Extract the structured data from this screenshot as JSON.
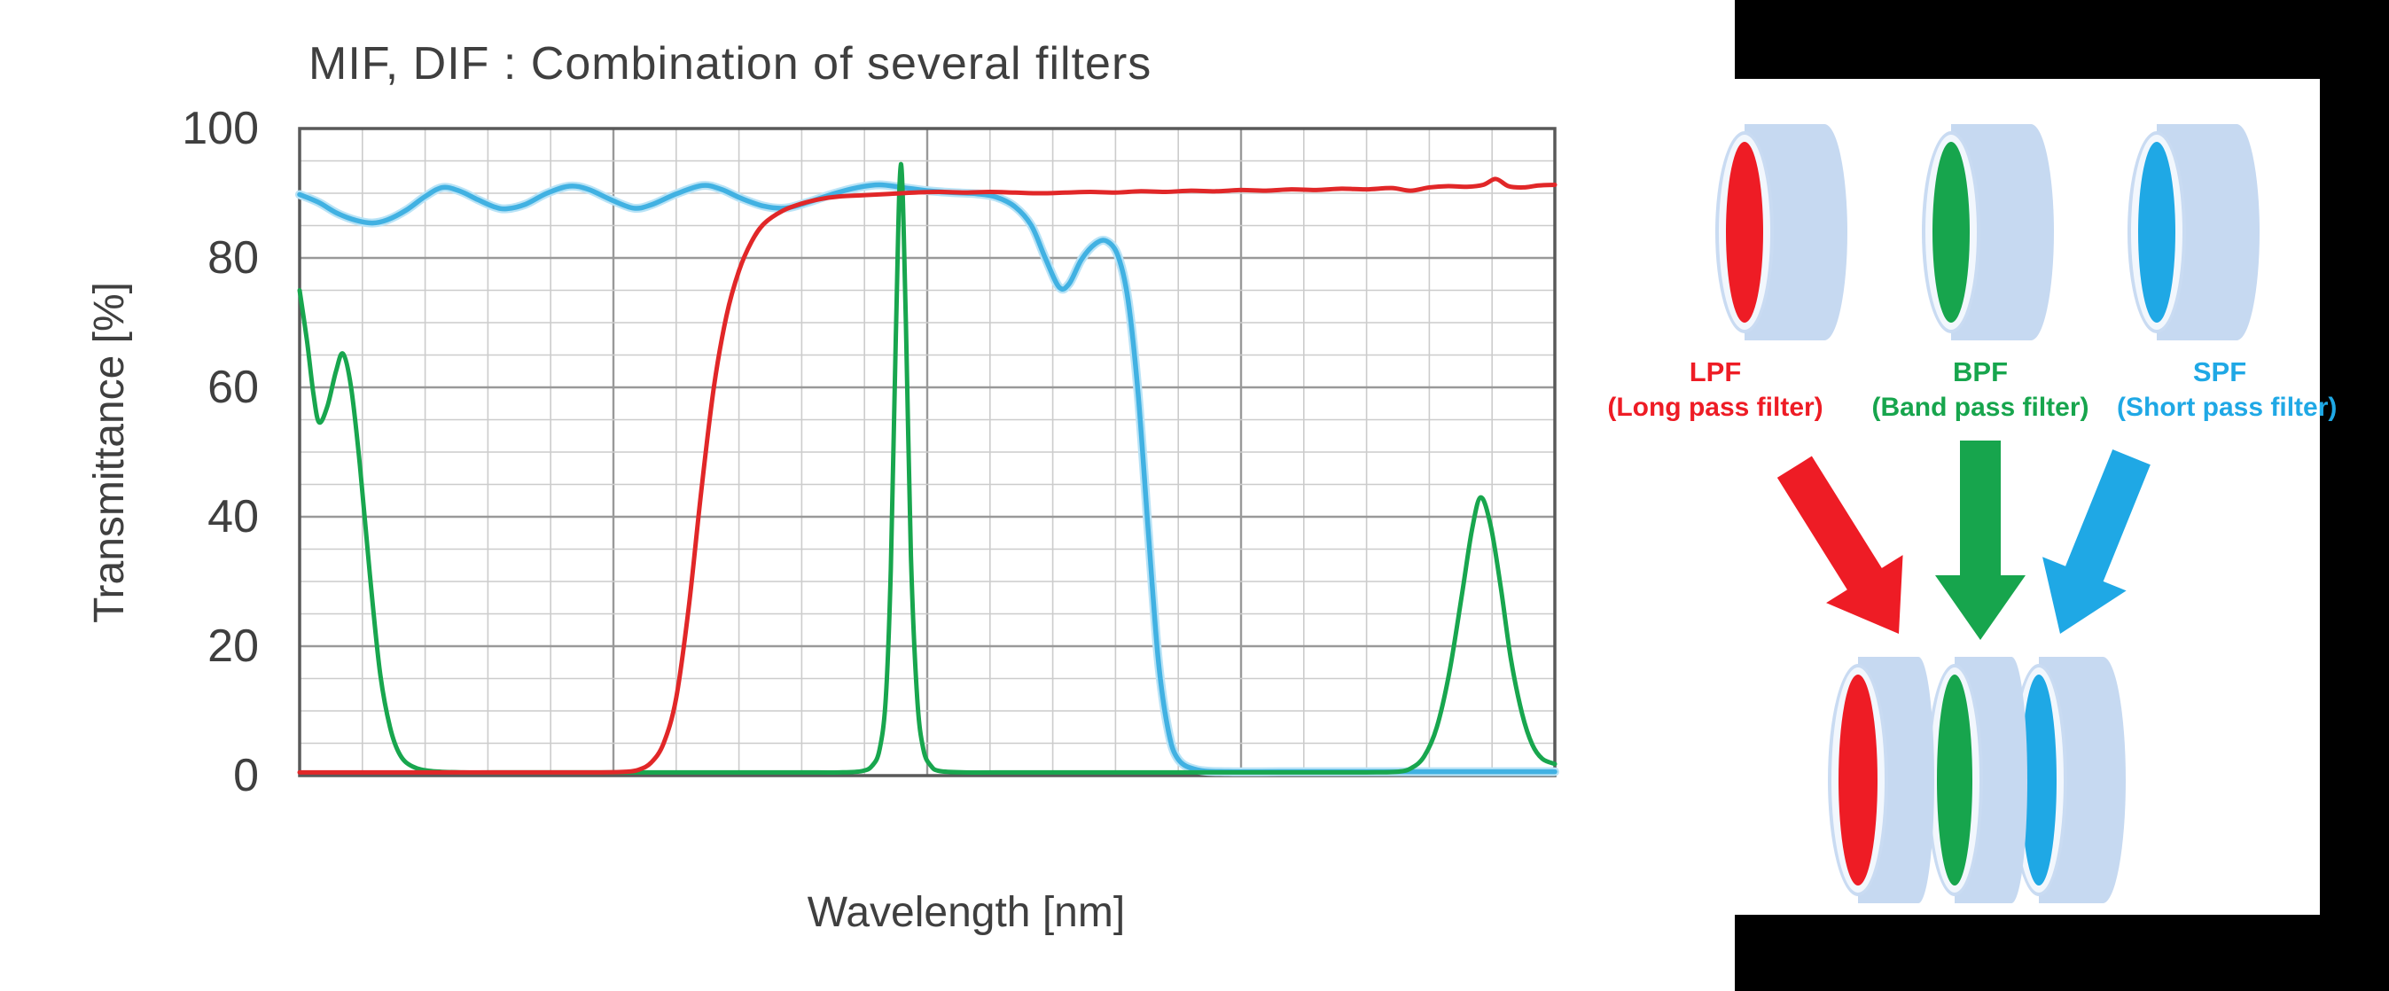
{
  "colors": {
    "lpf_red": "#ee1c25",
    "bpf_green": "#17a54d",
    "spf_cyan": "#1fa8e5",
    "curve_red": "#e12728",
    "curve_green": "#18a64e",
    "curve_cyan": "#41b1e2",
    "curve_cyan_halo": "#b9e3f6",
    "cylinder_body": "#c6d9f1",
    "frame_black": "#000000",
    "text_gray": "#3f3f3f"
  },
  "chart_data": {
    "type": "line",
    "title": "MIF, DIF : Combination of several filters",
    "xlabel": "Wavelength [nm]",
    "ylabel": "Transmittance [%]",
    "x_axis": {
      "tick_labels_visible": false,
      "minor_divisions": 20,
      "major_every_divisions": 5,
      "note": "x values below are percent of plotted wavelength range (no numeric labels shown)"
    },
    "y_axis": {
      "min": 0,
      "max": 100,
      "tick_labels": [
        "100",
        "80",
        "60",
        "40",
        "20",
        "0"
      ],
      "minor_step": 5,
      "major_step": 20
    },
    "grid": "on",
    "legend": "none",
    "series": [
      {
        "name": "SPF (Short pass filter)",
        "color_key": "spf_cyan",
        "points": [
          [
            0,
            89.8
          ],
          [
            1.5,
            88.6
          ],
          [
            3,
            86.9
          ],
          [
            4.5,
            85.8
          ],
          [
            5.8,
            85.4
          ],
          [
            7,
            85.9
          ],
          [
            8.5,
            87.4
          ],
          [
            10,
            89.5
          ],
          [
            11.4,
            90.9
          ],
          [
            12.8,
            90.3
          ],
          [
            14.2,
            89.0
          ],
          [
            15.5,
            87.9
          ],
          [
            16.5,
            87.6
          ],
          [
            18,
            88.3
          ],
          [
            19.7,
            90.0
          ],
          [
            21.5,
            91.1
          ],
          [
            23,
            90.6
          ],
          [
            24.8,
            89.0
          ],
          [
            26.6,
            87.7
          ],
          [
            28,
            88.2
          ],
          [
            30,
            89.9
          ],
          [
            32.1,
            91.2
          ],
          [
            33.6,
            90.6
          ],
          [
            35.2,
            89.2
          ],
          [
            37,
            88.0
          ],
          [
            38.7,
            87.7
          ],
          [
            40.5,
            88.6
          ],
          [
            42.5,
            89.9
          ],
          [
            44.5,
            90.9
          ],
          [
            46.2,
            91.3
          ],
          [
            48,
            90.9
          ],
          [
            50,
            90.4
          ],
          [
            52,
            90.1
          ],
          [
            54,
            89.9
          ],
          [
            55.5,
            89.4
          ],
          [
            57,
            87.9
          ],
          [
            58.3,
            85.0
          ],
          [
            59.4,
            80.0
          ],
          [
            60.5,
            75.5
          ],
          [
            61.3,
            76.0
          ],
          [
            62.3,
            79.8
          ],
          [
            63.4,
            82.2
          ],
          [
            64.3,
            82.6
          ],
          [
            65.2,
            80.3
          ],
          [
            66,
            73.5
          ],
          [
            66.8,
            59.0
          ],
          [
            67.6,
            38.0
          ],
          [
            68.4,
            18.0
          ],
          [
            69.2,
            7.0
          ],
          [
            70,
            2.5
          ],
          [
            71.5,
            0.9
          ],
          [
            74,
            0.6
          ],
          [
            78,
            0.6
          ],
          [
            82,
            0.6
          ],
          [
            86,
            0.6
          ],
          [
            90,
            0.6
          ],
          [
            95,
            0.6
          ],
          [
            100,
            0.6
          ]
        ]
      },
      {
        "name": "BPF (Band pass filter)",
        "color_key": "bpf_green",
        "points": [
          [
            0,
            75
          ],
          [
            0.6,
            67
          ],
          [
            1.1,
            59
          ],
          [
            1.55,
            54.6
          ],
          [
            2.2,
            57
          ],
          [
            2.9,
            62.5
          ],
          [
            3.46,
            65.2
          ],
          [
            4.1,
            60
          ],
          [
            4.8,
            48
          ],
          [
            5.6,
            31
          ],
          [
            6.4,
            16
          ],
          [
            7.2,
            7.5
          ],
          [
            8,
            3.2
          ],
          [
            9,
            1.4
          ],
          [
            10.5,
            0.7
          ],
          [
            13,
            0.5
          ],
          [
            17,
            0.5
          ],
          [
            21,
            0.5
          ],
          [
            25,
            0.5
          ],
          [
            30,
            0.5
          ],
          [
            35,
            0.5
          ],
          [
            40,
            0.5
          ],
          [
            43,
            0.5
          ],
          [
            44.8,
            0.7
          ],
          [
            45.6,
            1.5
          ],
          [
            46.2,
            4
          ],
          [
            46.7,
            12
          ],
          [
            47.1,
            32
          ],
          [
            47.5,
            68
          ],
          [
            47.9,
            94.5
          ],
          [
            48.3,
            70
          ],
          [
            48.7,
            34
          ],
          [
            49.2,
            12
          ],
          [
            49.7,
            4
          ],
          [
            50.3,
            1.5
          ],
          [
            51,
            0.7
          ],
          [
            53,
            0.5
          ],
          [
            57,
            0.5
          ],
          [
            62,
            0.5
          ],
          [
            68,
            0.5
          ],
          [
            74,
            0.5
          ],
          [
            80,
            0.5
          ],
          [
            85,
            0.5
          ],
          [
            87.5,
            0.6
          ],
          [
            88.6,
            1.2
          ],
          [
            89.6,
            3
          ],
          [
            90.6,
            7.5
          ],
          [
            91.6,
            16
          ],
          [
            92.6,
            28
          ],
          [
            93.4,
            38
          ],
          [
            94.1,
            43
          ],
          [
            94.9,
            38.5
          ],
          [
            95.7,
            29
          ],
          [
            96.5,
            18
          ],
          [
            97.4,
            9.5
          ],
          [
            98.2,
            4.8
          ],
          [
            99,
            2.6
          ],
          [
            100,
            1.8
          ]
        ]
      },
      {
        "name": "LPF (Long pass filter)",
        "color_key": "lpf_red",
        "points": [
          [
            0,
            0.5
          ],
          [
            5,
            0.5
          ],
          [
            10,
            0.5
          ],
          [
            15,
            0.5
          ],
          [
            20,
            0.5
          ],
          [
            24,
            0.5
          ],
          [
            26,
            0.6
          ],
          [
            27,
            0.9
          ],
          [
            28,
            2
          ],
          [
            29,
            5
          ],
          [
            30,
            12
          ],
          [
            31,
            26
          ],
          [
            32,
            44
          ],
          [
            33,
            60
          ],
          [
            34,
            71
          ],
          [
            35,
            78
          ],
          [
            36,
            82.5
          ],
          [
            37,
            85.3
          ],
          [
            38.5,
            87.3
          ],
          [
            40,
            88.4
          ],
          [
            41.5,
            89.1
          ],
          [
            43,
            89.5
          ],
          [
            45,
            89.7
          ],
          [
            47,
            89.9
          ],
          [
            49,
            90.1
          ],
          [
            51,
            90.2
          ],
          [
            53,
            90.1
          ],
          [
            55,
            90.2
          ],
          [
            57,
            90.1
          ],
          [
            59,
            90.0
          ],
          [
            61,
            90.1
          ],
          [
            63,
            90.2
          ],
          [
            65,
            90.1
          ],
          [
            67,
            90.3
          ],
          [
            69,
            90.2
          ],
          [
            71,
            90.4
          ],
          [
            73,
            90.3
          ],
          [
            75,
            90.5
          ],
          [
            77,
            90.4
          ],
          [
            79,
            90.6
          ],
          [
            81,
            90.5
          ],
          [
            83,
            90.7
          ],
          [
            85,
            90.6
          ],
          [
            87,
            90.8
          ],
          [
            88.5,
            90.4
          ],
          [
            90,
            90.9
          ],
          [
            91.5,
            91.1
          ],
          [
            93,
            91.0
          ],
          [
            94.3,
            91.3
          ],
          [
            95.3,
            92.2
          ],
          [
            96.3,
            91.1
          ],
          [
            97.5,
            90.9
          ],
          [
            98.7,
            91.2
          ],
          [
            100,
            91.3
          ]
        ]
      }
    ]
  },
  "panel": {
    "filters": [
      {
        "abbr": "LPF",
        "paren": "(Long pass filter)",
        "color_key": "lpf_red"
      },
      {
        "abbr": "BPF",
        "paren": "(Band pass filter)",
        "color_key": "bpf_green"
      },
      {
        "abbr": "SPF",
        "paren": "(Short pass filter)",
        "color_key": "spf_cyan"
      }
    ]
  }
}
